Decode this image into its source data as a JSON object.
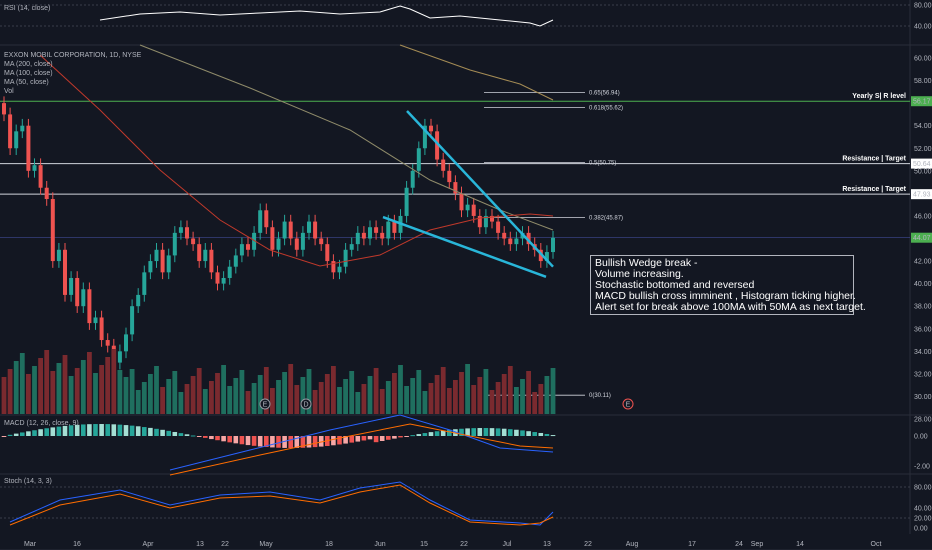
{
  "header": {
    "rsi_label": "RSI (14, close)",
    "symbol": "EXXON MOBIL CORPORATION, 1D, NYSE",
    "ma200": "MA (200, close)",
    "ma100": "MA (100, close)",
    "ma50": "MA (50, close)",
    "vol": "Vol",
    "macd_label": "MACD (12, 26, close, 9)",
    "stoch_label": "Stoch (14, 3, 3)"
  },
  "annotation": [
    "Bullish Wedge break -",
    "Volume increasing.",
    "Stochastic bottomed and reversed",
    "MACD bullish cross imminent , Histogram ticking higher.",
    "Alert set for break above 100MA with 50MA as next target."
  ],
  "chart_data": {
    "type": "candlestick",
    "price_axis": [
      "60.00",
      "58.00",
      "56.00",
      "54.00",
      "52.00",
      "50.00",
      "48.00",
      "46.00",
      "44.00",
      "42.00",
      "40.00",
      "38.00",
      "36.00",
      "34.00",
      "32.00",
      "30.00",
      "28.00"
    ],
    "rsi_axis": [
      "80.00",
      "40.00"
    ],
    "macd_axis": [
      "0.00",
      "-2.00"
    ],
    "stoch_axis": [
      "80.00",
      "40.00",
      "20.00",
      "0.00"
    ],
    "x_ticks": [
      "Mar",
      "16",
      "Apr",
      "13",
      "22",
      "May",
      "18",
      "Jun",
      "15",
      "22",
      "Jul",
      "13",
      "22",
      "Aug",
      "17",
      "24",
      "Sep",
      "14",
      "Oct"
    ],
    "price_tags": [
      {
        "value": "56.17",
        "color": "#4caf50"
      },
      {
        "value": "50.64",
        "color": "#ffffff"
      },
      {
        "value": "47.93",
        "color": "#ffffff"
      },
      {
        "value": "44.07",
        "color": "#4caf50"
      }
    ],
    "levels": [
      {
        "label": "Yearly  S| R level",
        "price": 56.17,
        "color": "#4caf50"
      },
      {
        "label": "Resistance | Target",
        "price": 50.64,
        "color": "#d1d4dc"
      },
      {
        "label": "Resistance | Target",
        "price": 47.93,
        "color": "#d1d4dc"
      }
    ],
    "fib": [
      {
        "label": "0.65(56.94)",
        "price": 56.94
      },
      {
        "label": "0.618(55.62)",
        "price": 55.62
      },
      {
        "label": "0.5(50.75)",
        "price": 50.75
      },
      {
        "label": "0.382(45.87)",
        "price": 45.87
      },
      {
        "label": "0(30.11)",
        "price": 30.11
      }
    ],
    "events": [
      "E",
      "D",
      "E"
    ],
    "closes": [
      55.0,
      52.0,
      53.5,
      54.0,
      50.0,
      50.5,
      48.5,
      47.5,
      42.0,
      43.0,
      39.0,
      40.5,
      38.0,
      39.5,
      36.5,
      37.0,
      35.0,
      34.5,
      33.0,
      34.0,
      35.5,
      38.0,
      39.0,
      41.0,
      42.0,
      43.0,
      41.0,
      42.5,
      44.5,
      45.0,
      44.0,
      43.5,
      42.0,
      43.0,
      41.0,
      40.0,
      40.5,
      41.5,
      42.5,
      43.5,
      43.0,
      44.5,
      46.5,
      45.0,
      43.0,
      44.0,
      45.5,
      44.0,
      43.0,
      44.5,
      45.5,
      44.0,
      43.5,
      42.0,
      41.0,
      41.5,
      43.0,
      43.5,
      44.5,
      44.0,
      45.0,
      44.5,
      44.0,
      45.5,
      44.5,
      46.0,
      48.5,
      50.0,
      52.0,
      54.0,
      53.5,
      51.0,
      50.0,
      49.0,
      48.0,
      46.5,
      47.0,
      46.0,
      45.0,
      46.0,
      45.5,
      44.5,
      44.0,
      43.5,
      44.0,
      44.5,
      43.5,
      43.0,
      42.0,
      42.8,
      44.07
    ]
  }
}
